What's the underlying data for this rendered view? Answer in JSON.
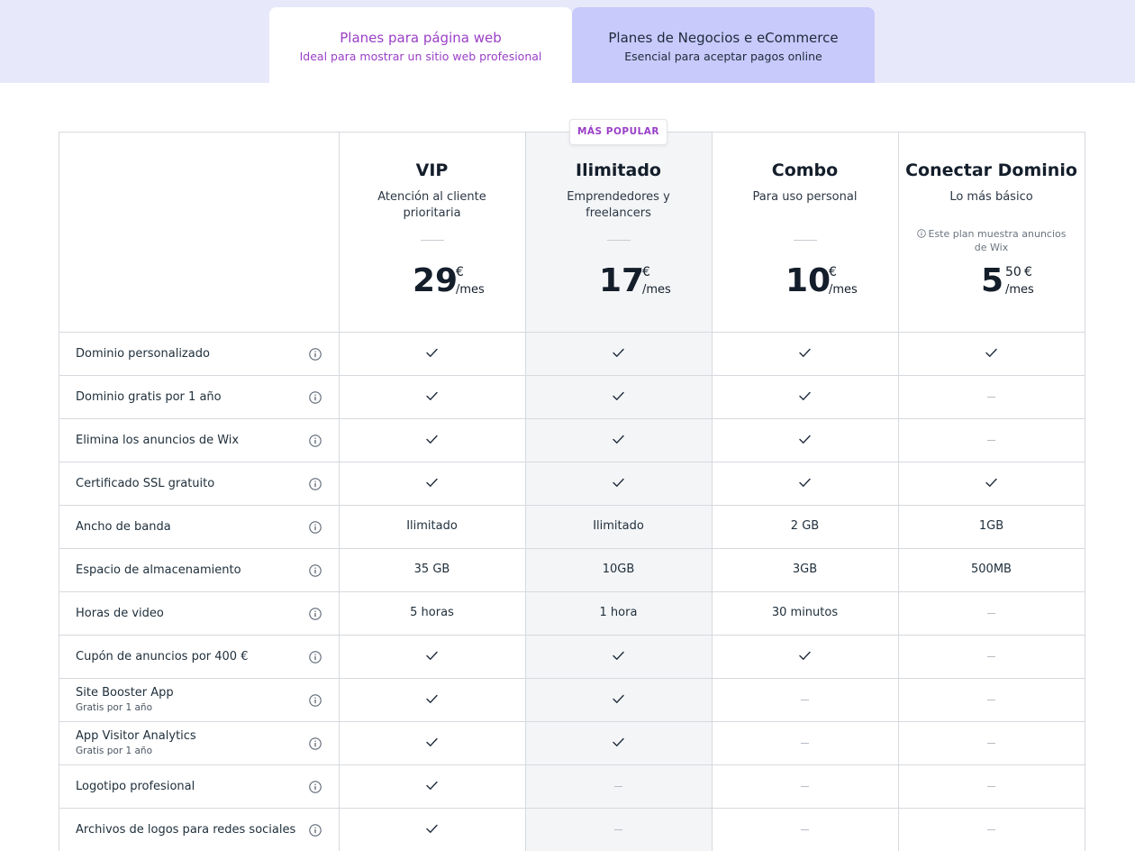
{
  "tabs": [
    {
      "title": "Planes para página web",
      "subtitle": "Ideal para mostrar un sitio web profesional",
      "active": true
    },
    {
      "title": "Planes de Negocios e eCommerce",
      "subtitle": "Esencial para aceptar pagos online",
      "active": false
    }
  ],
  "popular_badge": "MÁS POPULAR",
  "plans": [
    {
      "name": "VIP",
      "description": "Atención al cliente prioritaria",
      "price_int": "29",
      "price_dec": "",
      "currency": "€",
      "period": "/mes",
      "note": ""
    },
    {
      "name": "Ilimitado",
      "description": "Emprendedores y freelancers",
      "price_int": "17",
      "price_dec": "",
      "currency": "€",
      "period": "/mes",
      "note": ""
    },
    {
      "name": "Combo",
      "description": "Para uso personal",
      "price_int": "10",
      "price_dec": "",
      "currency": "€",
      "period": "/mes",
      "note": ""
    },
    {
      "name": "Conectar Dominio",
      "description": "Lo más básico",
      "price_int": "5",
      "price_dec": "50",
      "currency": "€",
      "period": "/mes",
      "note": "Este plan muestra anuncios de Wix"
    }
  ],
  "features": [
    {
      "label": "Dominio personalizado",
      "sub": "",
      "values": [
        "check",
        "check",
        "check",
        "check"
      ]
    },
    {
      "label": "Dominio gratis por 1 año",
      "sub": "",
      "values": [
        "check",
        "check",
        "check",
        "none"
      ]
    },
    {
      "label": "Elimina los anuncios de Wix",
      "sub": "",
      "values": [
        "check",
        "check",
        "check",
        "none"
      ]
    },
    {
      "label": "Certificado SSL gratuito",
      "sub": "",
      "values": [
        "check",
        "check",
        "check",
        "check"
      ]
    },
    {
      "label": "Ancho de banda",
      "sub": "",
      "values": [
        "Ilimitado",
        "Ilimitado",
        "2 GB",
        "1GB"
      ]
    },
    {
      "label": "Espacio de almacenamiento",
      "sub": "",
      "values": [
        "35 GB",
        "10GB",
        "3GB",
        "500MB"
      ]
    },
    {
      "label": "Horas de video",
      "sub": "",
      "values": [
        "5 horas",
        "1 hora",
        "30 minutos",
        "none"
      ]
    },
    {
      "label": "Cupón de anuncios por 400 €",
      "sub": "",
      "values": [
        "check",
        "check",
        "check",
        "none"
      ]
    },
    {
      "label": "Site Booster App",
      "sub": "Gratis por 1 año",
      "values": [
        "check",
        "check",
        "none",
        "none"
      ]
    },
    {
      "label": "App Visitor Analytics",
      "sub": "Gratis por 1 año",
      "values": [
        "check",
        "check",
        "none",
        "none"
      ]
    },
    {
      "label": "Logotipo profesional",
      "sub": "",
      "values": [
        "check",
        "none",
        "none",
        "none"
      ]
    },
    {
      "label": "Archivos de logos para redes sociales",
      "sub": "",
      "values": [
        "check",
        "none",
        "none",
        "none"
      ]
    }
  ],
  "colors": {
    "accent": "#9a3fc7",
    "tab_band": "#e8e8fb",
    "tab_inactive": "#c7cafb",
    "popular_column": "#f4f5f7"
  }
}
